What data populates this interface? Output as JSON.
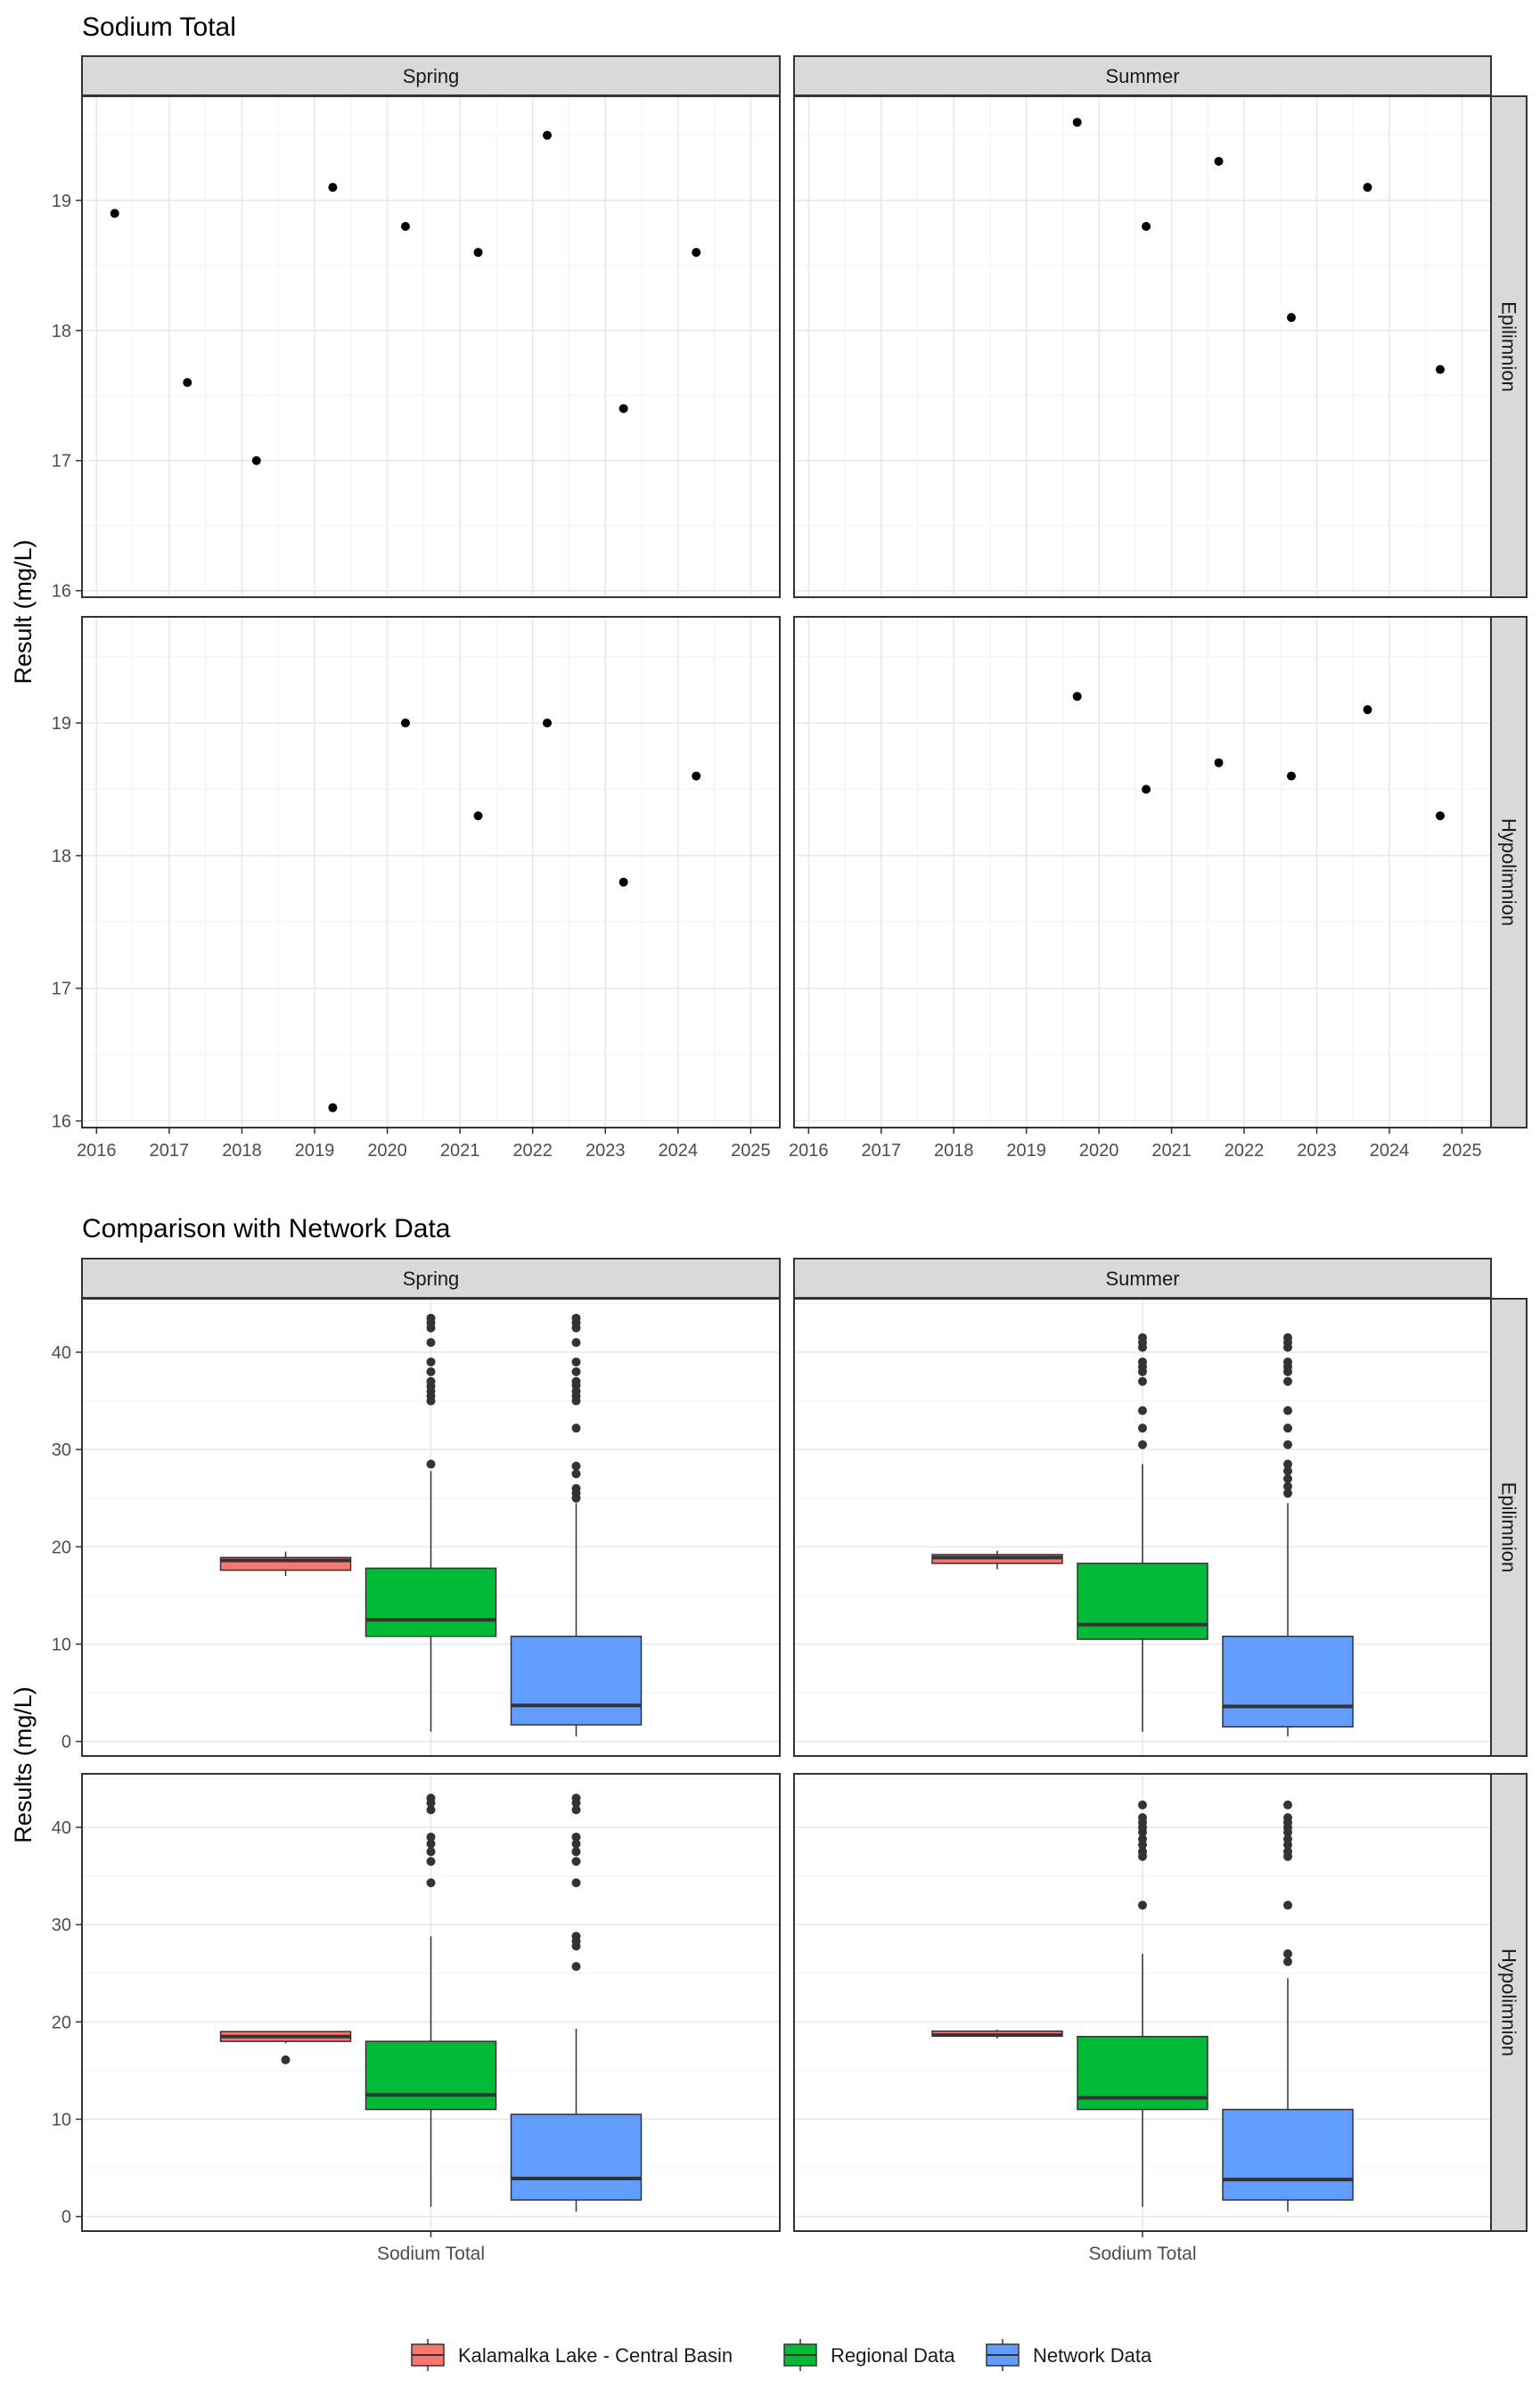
{
  "figure": {
    "top_title": "Sodium Total",
    "bottom_title": "Comparison with Network Data"
  },
  "chart_data": [
    {
      "type": "scatter",
      "title": "Sodium Total",
      "xlabel": "",
      "ylabel": "Result (mg/L)",
      "facet_columns": [
        "Spring",
        "Summer"
      ],
      "facet_rows": [
        "Epilimnion",
        "Hypolimnion"
      ],
      "xlim": [
        2015.8,
        2025.4
      ],
      "x_ticks": [
        2016,
        2017,
        2018,
        2019,
        2020,
        2021,
        2022,
        2023,
        2024,
        2025
      ],
      "ylim": [
        15.95,
        19.8
      ],
      "y_ticks": [
        16,
        17,
        18,
        19
      ],
      "grid": true,
      "panels": [
        {
          "season": "Spring",
          "layer": "Epilimnion",
          "points": [
            {
              "x": 2016.25,
              "y": 18.9
            },
            {
              "x": 2017.25,
              "y": 17.6
            },
            {
              "x": 2018.2,
              "y": 17.0
            },
            {
              "x": 2019.25,
              "y": 19.1
            },
            {
              "x": 2020.25,
              "y": 18.8
            },
            {
              "x": 2021.25,
              "y": 18.6
            },
            {
              "x": 2022.2,
              "y": 19.5
            },
            {
              "x": 2023.25,
              "y": 17.4
            },
            {
              "x": 2024.25,
              "y": 18.6
            }
          ]
        },
        {
          "season": "Summer",
          "layer": "Epilimnion",
          "points": [
            {
              "x": 2019.7,
              "y": 19.6
            },
            {
              "x": 2020.65,
              "y": 18.8
            },
            {
              "x": 2021.65,
              "y": 19.3
            },
            {
              "x": 2022.65,
              "y": 18.1
            },
            {
              "x": 2023.7,
              "y": 19.1
            },
            {
              "x": 2024.7,
              "y": 17.7
            }
          ]
        },
        {
          "season": "Spring",
          "layer": "Hypolimnion",
          "points": [
            {
              "x": 2019.25,
              "y": 16.1
            },
            {
              "x": 2020.25,
              "y": 19.0
            },
            {
              "x": 2021.25,
              "y": 18.3
            },
            {
              "x": 2022.2,
              "y": 19.0
            },
            {
              "x": 2023.25,
              "y": 17.8
            },
            {
              "x": 2024.25,
              "y": 18.6
            }
          ]
        },
        {
          "season": "Summer",
          "layer": "Hypolimnion",
          "points": [
            {
              "x": 2019.7,
              "y": 19.2
            },
            {
              "x": 2020.65,
              "y": 18.5
            },
            {
              "x": 2021.65,
              "y": 18.7
            },
            {
              "x": 2022.65,
              "y": 18.6
            },
            {
              "x": 2023.7,
              "y": 19.1
            },
            {
              "x": 2024.7,
              "y": 18.3
            }
          ]
        }
      ]
    },
    {
      "type": "box",
      "title": "Comparison with Network Data",
      "xlabel": "",
      "ylabel": "Results (mg/L)",
      "category": "Sodium Total",
      "facet_columns": [
        "Spring",
        "Summer"
      ],
      "facet_rows": [
        "Epilimnion",
        "Hypolimnion"
      ],
      "ylim": [
        -1.5,
        45.5
      ],
      "y_ticks": [
        0,
        10,
        20,
        30,
        40
      ],
      "grid": true,
      "legend_position": "bottom",
      "series": [
        {
          "name": "Kalamalka Lake - Central Basin",
          "color": "#F8766D"
        },
        {
          "name": "Regional Data",
          "color": "#00BA38"
        },
        {
          "name": "Network Data",
          "color": "#619CFF"
        }
      ],
      "panels": [
        {
          "season": "Spring",
          "layer": "Epilimnion",
          "boxes": [
            {
              "series": "Kalamalka Lake - Central Basin",
              "min": 17.0,
              "q1": 17.6,
              "median": 18.6,
              "q3": 18.9,
              "max": 19.5,
              "outliers": []
            },
            {
              "series": "Regional Data",
              "min": 1.0,
              "q1": 10.8,
              "median": 12.5,
              "q3": 17.8,
              "max": 27.8,
              "outliers": [
                28.5,
                35.0,
                35.5,
                36.0,
                36.5,
                37.0,
                38.0,
                39.0,
                41.0,
                42.5,
                43.0,
                43.5
              ]
            },
            {
              "series": "Network Data",
              "min": 0.5,
              "q1": 1.7,
              "median": 3.7,
              "q3": 10.8,
              "max": 24.5,
              "outliers": [
                25.0,
                25.5,
                26.0,
                27.5,
                28.3,
                32.2,
                35.0,
                35.5,
                36.0,
                36.6,
                37.0,
                38.0,
                39.0,
                41.0,
                42.5,
                43.0,
                43.5
              ]
            }
          ]
        },
        {
          "season": "Summer",
          "layer": "Epilimnion",
          "boxes": [
            {
              "series": "Kalamalka Lake - Central Basin",
              "min": 17.7,
              "q1": 18.3,
              "median": 18.9,
              "q3": 19.2,
              "max": 19.6,
              "outliers": []
            },
            {
              "series": "Regional Data",
              "min": 1.0,
              "q1": 10.5,
              "median": 12.0,
              "q3": 18.3,
              "max": 28.5,
              "outliers": [
                30.5,
                32.2,
                34.0,
                37.0,
                38.0,
                38.5,
                39.0,
                40.5,
                41.0,
                41.5
              ]
            },
            {
              "series": "Network Data",
              "min": 0.5,
              "q1": 1.5,
              "median": 3.6,
              "q3": 10.8,
              "max": 24.5,
              "outliers": [
                25.5,
                26.2,
                27.0,
                27.8,
                28.5,
                30.5,
                32.2,
                34.0,
                37.0,
                38.0,
                38.5,
                39.0,
                40.5,
                41.0,
                41.5
              ]
            }
          ]
        },
        {
          "season": "Spring",
          "layer": "Hypolimnion",
          "boxes": [
            {
              "series": "Kalamalka Lake - Central Basin",
              "min": 17.8,
              "q1": 18.0,
              "median": 18.5,
              "q3": 19.0,
              "max": 19.0,
              "outliers": [
                16.1
              ]
            },
            {
              "series": "Regional Data",
              "min": 1.0,
              "q1": 11.0,
              "median": 12.5,
              "q3": 18.0,
              "max": 28.8,
              "outliers": [
                34.3,
                36.5,
                37.5,
                38.3,
                39.0,
                41.8,
                42.5,
                43.0
              ]
            },
            {
              "series": "Network Data",
              "min": 0.5,
              "q1": 1.7,
              "median": 3.9,
              "q3": 10.5,
              "max": 19.3,
              "outliers": [
                25.7,
                27.8,
                28.3,
                28.8,
                34.3,
                36.5,
                37.5,
                38.3,
                39.0,
                41.8,
                42.5,
                43.0
              ]
            }
          ]
        },
        {
          "season": "Summer",
          "layer": "Hypolimnion",
          "boxes": [
            {
              "series": "Kalamalka Lake - Central Basin",
              "min": 18.3,
              "q1": 18.55,
              "median": 18.65,
              "q3": 19.05,
              "max": 19.2,
              "outliers": []
            },
            {
              "series": "Regional Data",
              "min": 1.0,
              "q1": 11.0,
              "median": 12.2,
              "q3": 18.5,
              "max": 27.0,
              "outliers": [
                32.0,
                37.0,
                37.5,
                38.2,
                38.8,
                39.5,
                40.0,
                40.5,
                41.0,
                42.3
              ]
            },
            {
              "series": "Network Data",
              "min": 0.5,
              "q1": 1.7,
              "median": 3.8,
              "q3": 11.0,
              "max": 24.5,
              "outliers": [
                26.2,
                27.0,
                32.0,
                37.0,
                37.5,
                38.2,
                38.8,
                39.5,
                40.0,
                40.5,
                41.0,
                42.3
              ]
            }
          ]
        }
      ]
    }
  ]
}
